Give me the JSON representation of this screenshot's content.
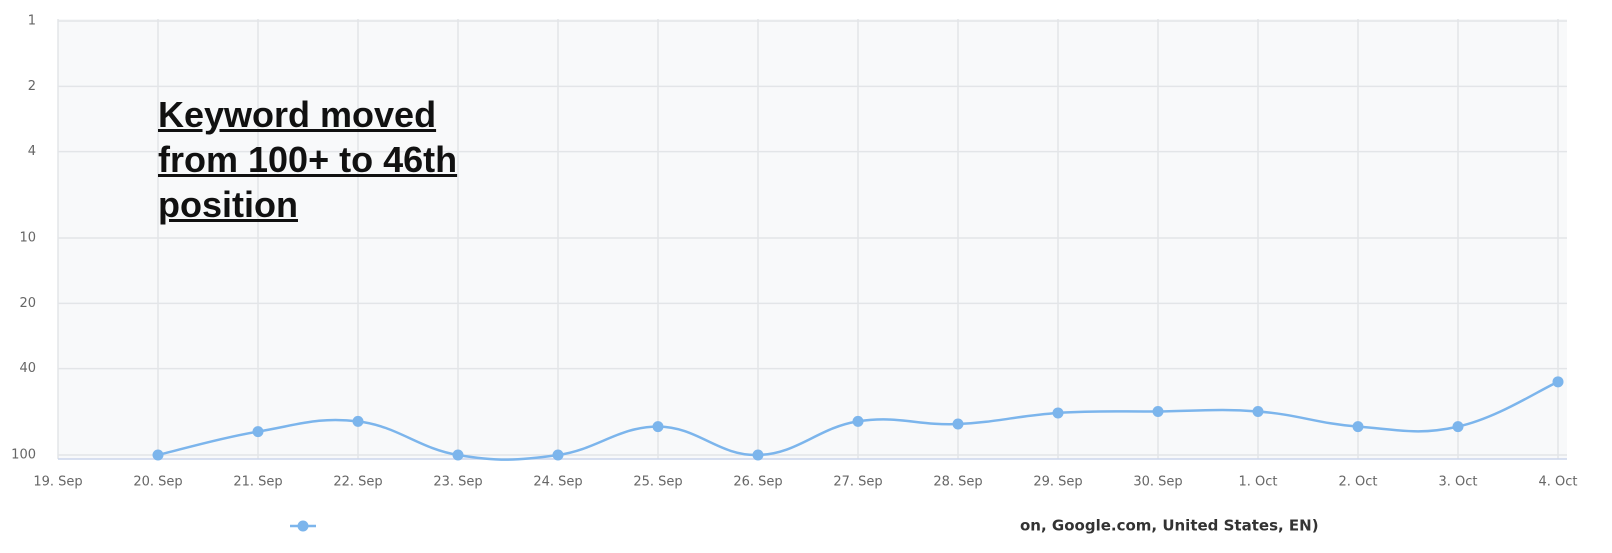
{
  "chart_data": {
    "type": "line",
    "annotation": "Keyword moved from 100+ to 46th position",
    "categories": [
      "19. Sep",
      "20. Sep",
      "21. Sep",
      "22. Sep",
      "23. Sep",
      "24. Sep",
      "25. Sep",
      "26. Sep",
      "27. Sep",
      "28. Sep",
      "29. Sep",
      "30. Sep",
      "1. Oct",
      "2. Oct",
      "3. Oct",
      "4. Oct"
    ],
    "series": [
      {
        "name": "on, Google.com, United States, EN)",
        "color": "#7cb5ec",
        "values": [
          null,
          100,
          78,
          70,
          100,
          100,
          74,
          100,
          70,
          72,
          64,
          63,
          63,
          74,
          74,
          46
        ]
      }
    ],
    "ylim": [
      1,
      100
    ],
    "yticks": [
      1,
      2,
      4,
      10,
      20,
      40,
      100
    ],
    "log_scale": true,
    "y_reversed": true,
    "grid": true
  }
}
